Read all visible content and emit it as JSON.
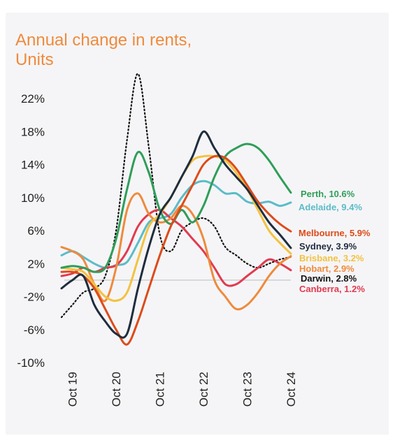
{
  "chart_data": {
    "type": "line",
    "title_lines": [
      "Annual change in rents,",
      "Units"
    ],
    "xlabel": "",
    "ylabel": "",
    "x_start": "2019-07",
    "x_end": "2024-10",
    "x_ticks": [
      "Oct 19",
      "Oct 20",
      "Oct 21",
      "Oct 22",
      "Oct 23",
      "Oct 24"
    ],
    "x_tick_dates": [
      "2019-10",
      "2020-10",
      "2021-10",
      "2022-10",
      "2023-10",
      "2024-10"
    ],
    "y_ticks": [
      "22%",
      "18%",
      "14%",
      "10%",
      "6%",
      "2%",
      "-2%",
      "-6%",
      "-10%"
    ],
    "y_tick_values": [
      22,
      18,
      14,
      10,
      6,
      2,
      -2,
      -6,
      -10
    ],
    "ylim": [
      -10,
      26
    ],
    "zero_line": true,
    "grid": false,
    "series": [
      {
        "name": "Perth",
        "label": "Perth, 10.6%",
        "color": "#2e9e58",
        "style": "solid",
        "x": [
          "2019-07",
          "2019-10",
          "2020-01",
          "2020-04",
          "2020-07",
          "2020-10",
          "2021-01",
          "2021-04",
          "2021-07",
          "2021-10",
          "2022-01",
          "2022-04",
          "2022-07",
          "2022-10",
          "2023-01",
          "2023-04",
          "2023-07",
          "2023-10",
          "2024-01",
          "2024-04",
          "2024-07",
          "2024-10"
        ],
        "y": [
          1.5,
          1.7,
          1.5,
          1.0,
          1.5,
          5.0,
          11.0,
          15.5,
          13.0,
          8.5,
          6.8,
          8.5,
          7.0,
          9.0,
          12.5,
          15.0,
          16.0,
          16.5,
          16.0,
          14.5,
          12.5,
          10.6
        ]
      },
      {
        "name": "Adelaide",
        "label": "Adelaide, 9.4%",
        "color": "#5bbcc8",
        "style": "solid",
        "x": [
          "2019-07",
          "2019-10",
          "2020-01",
          "2020-04",
          "2020-07",
          "2020-10",
          "2021-01",
          "2021-04",
          "2021-07",
          "2021-10",
          "2022-01",
          "2022-04",
          "2022-07",
          "2022-10",
          "2023-01",
          "2023-04",
          "2023-07",
          "2023-10",
          "2024-01",
          "2024-04",
          "2024-07",
          "2024-10"
        ],
        "y": [
          3.0,
          3.5,
          2.8,
          2.0,
          1.5,
          1.8,
          2.2,
          4.5,
          7.0,
          7.5,
          8.0,
          10.0,
          11.5,
          12.0,
          11.5,
          10.5,
          10.5,
          9.5,
          9.3,
          9.5,
          9.0,
          9.4
        ]
      },
      {
        "name": "Melbourne",
        "label": "Melbourne, 5.9%",
        "color": "#dd4b1a",
        "style": "solid",
        "x": [
          "2019-07",
          "2019-10",
          "2020-01",
          "2020-04",
          "2020-07",
          "2020-10",
          "2021-01",
          "2021-04",
          "2021-07",
          "2021-10",
          "2022-01",
          "2022-04",
          "2022-07",
          "2022-10",
          "2023-01",
          "2023-04",
          "2023-07",
          "2023-10",
          "2024-01",
          "2024-04",
          "2024-07",
          "2024-10"
        ],
        "y": [
          1.0,
          1.0,
          0.5,
          -1.0,
          -3.5,
          -6.0,
          -7.8,
          -5.0,
          -1.0,
          3.0,
          6.5,
          9.0,
          11.5,
          14.0,
          15.0,
          14.8,
          13.5,
          11.5,
          9.5,
          8.0,
          6.8,
          5.9
        ]
      },
      {
        "name": "Sydney",
        "label": "Sydney, 3.9%",
        "color": "#1f2d3d",
        "style": "solid",
        "x": [
          "2019-07",
          "2019-10",
          "2020-01",
          "2020-04",
          "2020-07",
          "2020-10",
          "2021-01",
          "2021-04",
          "2021-07",
          "2021-10",
          "2022-01",
          "2022-04",
          "2022-07",
          "2022-10",
          "2023-01",
          "2023-04",
          "2023-07",
          "2023-10",
          "2024-01",
          "2024-04",
          "2024-07",
          "2024-10"
        ],
        "y": [
          -1.0,
          0.0,
          0.5,
          -3.0,
          -5.0,
          -6.5,
          -6.5,
          -1.0,
          4.0,
          8.0,
          10.0,
          12.5,
          15.0,
          18.0,
          16.0,
          14.0,
          12.5,
          11.0,
          9.0,
          7.0,
          5.5,
          3.9
        ]
      },
      {
        "name": "Brisbane",
        "label": "Brisbane, 3.2%",
        "color": "#f2c240",
        "style": "solid",
        "x": [
          "2019-07",
          "2019-10",
          "2020-01",
          "2020-04",
          "2020-07",
          "2020-10",
          "2021-01",
          "2021-04",
          "2021-07",
          "2021-10",
          "2022-01",
          "2022-04",
          "2022-07",
          "2022-10",
          "2023-01",
          "2023-04",
          "2023-07",
          "2023-10",
          "2024-01",
          "2024-04",
          "2024-07",
          "2024-10"
        ],
        "y": [
          1.5,
          1.3,
          1.0,
          -0.5,
          -2.0,
          -2.5,
          -1.5,
          2.5,
          6.5,
          8.0,
          10.0,
          12.5,
          14.5,
          15.0,
          15.0,
          14.5,
          13.0,
          11.0,
          8.5,
          6.0,
          4.5,
          3.2
        ]
      },
      {
        "name": "Hobart",
        "label": "Hobart, 2.9%",
        "color": "#ef8a3c",
        "style": "solid",
        "x": [
          "2019-07",
          "2019-10",
          "2020-01",
          "2020-04",
          "2020-07",
          "2020-10",
          "2021-01",
          "2021-04",
          "2021-07",
          "2021-10",
          "2022-01",
          "2022-04",
          "2022-07",
          "2022-10",
          "2023-01",
          "2023-04",
          "2023-07",
          "2023-10",
          "2024-01",
          "2024-04",
          "2024-07",
          "2024-10"
        ],
        "y": [
          4.0,
          3.5,
          2.5,
          -0.5,
          -2.5,
          1.5,
          8.5,
          10.5,
          8.0,
          7.0,
          7.5,
          9.0,
          8.0,
          5.0,
          0.0,
          -2.0,
          -3.5,
          -3.0,
          -1.5,
          0.5,
          2.0,
          2.9
        ]
      },
      {
        "name": "Darwin",
        "label": "Darwin, 2.8%",
        "color": "#111111",
        "style": "dotted",
        "x": [
          "2019-07",
          "2019-10",
          "2020-01",
          "2020-04",
          "2020-07",
          "2020-10",
          "2021-01",
          "2021-04",
          "2021-07",
          "2021-10",
          "2022-01",
          "2022-04",
          "2022-07",
          "2022-10",
          "2023-01",
          "2023-04",
          "2023-07",
          "2023-10",
          "2024-01",
          "2024-04",
          "2024-07",
          "2024-10"
        ],
        "y": [
          -4.5,
          -3.0,
          -1.5,
          -1.0,
          0.5,
          6.0,
          17.0,
          25.0,
          16.0,
          5.5,
          3.5,
          6.0,
          7.0,
          7.5,
          6.5,
          4.0,
          3.0,
          2.0,
          1.5,
          2.0,
          2.5,
          2.8
        ]
      },
      {
        "name": "Canberra",
        "label": "Canberra, 1.2%",
        "color": "#e23a4e",
        "style": "solid",
        "x": [
          "2019-07",
          "2019-10",
          "2020-01",
          "2020-04",
          "2020-07",
          "2020-10",
          "2021-01",
          "2021-04",
          "2021-07",
          "2021-10",
          "2022-01",
          "2022-04",
          "2022-07",
          "2022-10",
          "2023-01",
          "2023-04",
          "2023-07",
          "2023-10",
          "2024-01",
          "2024-04",
          "2024-07",
          "2024-10"
        ],
        "y": [
          0.5,
          0.8,
          1.5,
          1.0,
          1.5,
          1.8,
          3.5,
          6.5,
          8.0,
          8.5,
          7.5,
          6.5,
          5.0,
          3.5,
          1.5,
          -0.5,
          -0.5,
          0.5,
          1.5,
          2.5,
          2.0,
          1.2
        ]
      }
    ]
  }
}
